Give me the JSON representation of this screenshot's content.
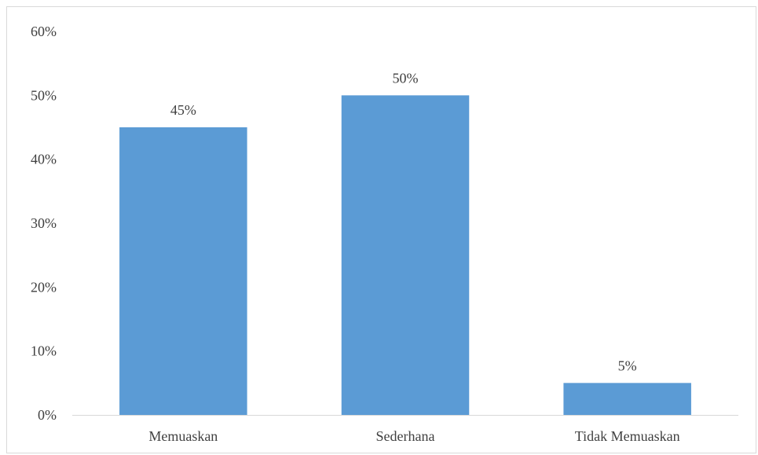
{
  "chart_data": {
    "type": "bar",
    "title": "",
    "xlabel": "",
    "ylabel": "",
    "categories": [
      "Memuaskan",
      "Sederhana",
      "Tidak Memuaskan"
    ],
    "values": [
      45,
      50,
      5
    ],
    "data_labels": [
      "45%",
      "50%",
      "5%"
    ],
    "ylim": [
      0,
      60
    ],
    "yticks": [
      0,
      10,
      20,
      30,
      40,
      50,
      60
    ],
    "ytick_labels": [
      "0%",
      "10%",
      "20%",
      "30%",
      "40%",
      "50%",
      "60%"
    ],
    "grid": false,
    "legend": "none",
    "bar_color": "#5b9bd5",
    "axis_color": "#d9d9d9",
    "text_color": "#404040"
  }
}
